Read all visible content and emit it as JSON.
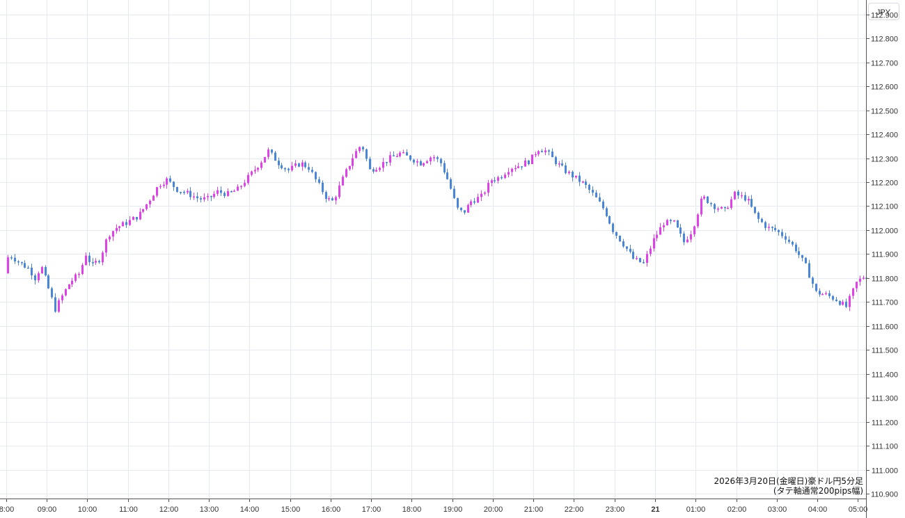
{
  "chart_data": {
    "type": "candlestick",
    "currency_label": "JPY",
    "annotation": {
      "line1": "2026年3月20日(金曜日)豪ドル円5分足",
      "line2": "(タテ軸通常200pips幅)"
    },
    "y_ticks": [
      "112.900",
      "112.800",
      "112.700",
      "112.600",
      "112.500",
      "112.400",
      "112.300",
      "112.200",
      "112.100",
      "112.000",
      "111.900",
      "111.800",
      "111.700",
      "111.600",
      "111.500",
      "111.400",
      "111.300",
      "111.200",
      "111.100",
      "111.000",
      "110.900"
    ],
    "ylim": [
      110.88,
      112.96
    ],
    "x_ticks": [
      {
        "label": "8:00",
        "hour": 8,
        "bold": false
      },
      {
        "label": "09:00",
        "hour": 9,
        "bold": false
      },
      {
        "label": "10:00",
        "hour": 10,
        "bold": false
      },
      {
        "label": "11:00",
        "hour": 11,
        "bold": false
      },
      {
        "label": "12:00",
        "hour": 12,
        "bold": false
      },
      {
        "label": "13:00",
        "hour": 13,
        "bold": false
      },
      {
        "label": "14:00",
        "hour": 14,
        "bold": false
      },
      {
        "label": "15:00",
        "hour": 15,
        "bold": false
      },
      {
        "label": "16:00",
        "hour": 16,
        "bold": false
      },
      {
        "label": "17:00",
        "hour": 17,
        "bold": false
      },
      {
        "label": "18:00",
        "hour": 18,
        "bold": false
      },
      {
        "label": "19:00",
        "hour": 19,
        "bold": false
      },
      {
        "label": "20:00",
        "hour": 20,
        "bold": false
      },
      {
        "label": "21:00",
        "hour": 21,
        "bold": false
      },
      {
        "label": "22:00",
        "hour": 22,
        "bold": false
      },
      {
        "label": "23:00",
        "hour": 23,
        "bold": false
      },
      {
        "label": "21",
        "hour": 24,
        "bold": true
      },
      {
        "label": "01:00",
        "hour": 25,
        "bold": false
      },
      {
        "label": "02:00",
        "hour": 26,
        "bold": false
      },
      {
        "label": "03:00",
        "hour": 27,
        "bold": false
      },
      {
        "label": "04:00",
        "hour": 28,
        "bold": false
      },
      {
        "label": "05:00",
        "hour": 29,
        "bold": false
      }
    ],
    "x_range_hours": [
      7.85,
      29.2
    ],
    "candle_interval_minutes": 5,
    "colors": {
      "up": "#e040e8",
      "down": "#4a86d8",
      "grid": "#e4eaf0",
      "axis": "#555555"
    },
    "price_path": [
      [
        8.0,
        111.82
      ],
      [
        8.1,
        111.9
      ],
      [
        8.25,
        111.88
      ],
      [
        8.4,
        111.86
      ],
      [
        8.6,
        111.84
      ],
      [
        8.75,
        111.8
      ],
      [
        8.9,
        111.85
      ],
      [
        9.25,
        111.67
      ],
      [
        9.4,
        111.72
      ],
      [
        9.6,
        111.78
      ],
      [
        9.85,
        111.82
      ],
      [
        10.0,
        111.9
      ],
      [
        10.15,
        111.85
      ],
      [
        10.35,
        111.88
      ],
      [
        10.55,
        111.98
      ],
      [
        10.75,
        112.01
      ],
      [
        11.0,
        112.03
      ],
      [
        11.3,
        112.06
      ],
      [
        11.55,
        112.12
      ],
      [
        11.8,
        112.19
      ],
      [
        12.0,
        112.21
      ],
      [
        12.25,
        112.17
      ],
      [
        12.55,
        112.15
      ],
      [
        12.8,
        112.13
      ],
      [
        13.0,
        112.13
      ],
      [
        13.25,
        112.16
      ],
      [
        13.5,
        112.15
      ],
      [
        13.75,
        112.17
      ],
      [
        14.0,
        112.22
      ],
      [
        14.3,
        112.28
      ],
      [
        14.5,
        112.33
      ],
      [
        14.75,
        112.28
      ],
      [
        15.0,
        112.25
      ],
      [
        15.3,
        112.28
      ],
      [
        15.5,
        112.26
      ],
      [
        15.7,
        112.2
      ],
      [
        15.95,
        112.13
      ],
      [
        16.1,
        112.12
      ],
      [
        16.35,
        112.22
      ],
      [
        16.6,
        112.31
      ],
      [
        16.8,
        112.36
      ],
      [
        17.0,
        112.25
      ],
      [
        17.25,
        112.27
      ],
      [
        17.5,
        112.3
      ],
      [
        17.75,
        112.32
      ],
      [
        18.0,
        112.3
      ],
      [
        18.25,
        112.28
      ],
      [
        18.55,
        112.31
      ],
      [
        18.75,
        112.28
      ],
      [
        18.95,
        112.2
      ],
      [
        19.15,
        112.09
      ],
      [
        19.3,
        112.07
      ],
      [
        19.5,
        112.12
      ],
      [
        19.75,
        112.14
      ],
      [
        20.0,
        112.21
      ],
      [
        20.2,
        112.22
      ],
      [
        20.45,
        112.26
      ],
      [
        20.7,
        112.27
      ],
      [
        20.95,
        112.29
      ],
      [
        21.15,
        112.34
      ],
      [
        21.35,
        112.33
      ],
      [
        21.55,
        112.29
      ],
      [
        21.8,
        112.25
      ],
      [
        22.05,
        112.22
      ],
      [
        22.3,
        112.19
      ],
      [
        22.55,
        112.14
      ],
      [
        22.8,
        112.08
      ],
      [
        23.0,
        112.0
      ],
      [
        23.3,
        111.93
      ],
      [
        23.5,
        111.88
      ],
      [
        23.75,
        111.86
      ],
      [
        24.0,
        111.96
      ],
      [
        24.25,
        112.03
      ],
      [
        24.5,
        112.03
      ],
      [
        24.75,
        111.95
      ],
      [
        24.95,
        112.0
      ],
      [
        25.2,
        112.14
      ],
      [
        25.5,
        112.1
      ],
      [
        25.75,
        112.08
      ],
      [
        26.0,
        112.15
      ],
      [
        26.3,
        112.13
      ],
      [
        26.55,
        112.05
      ],
      [
        26.8,
        112.01
      ],
      [
        27.0,
        112.0
      ],
      [
        27.25,
        111.97
      ],
      [
        27.5,
        111.92
      ],
      [
        27.75,
        111.85
      ],
      [
        28.0,
        111.74
      ],
      [
        28.25,
        111.73
      ],
      [
        28.5,
        111.71
      ],
      [
        28.75,
        111.68
      ],
      [
        29.0,
        111.78
      ],
      [
        29.2,
        111.81
      ]
    ]
  }
}
